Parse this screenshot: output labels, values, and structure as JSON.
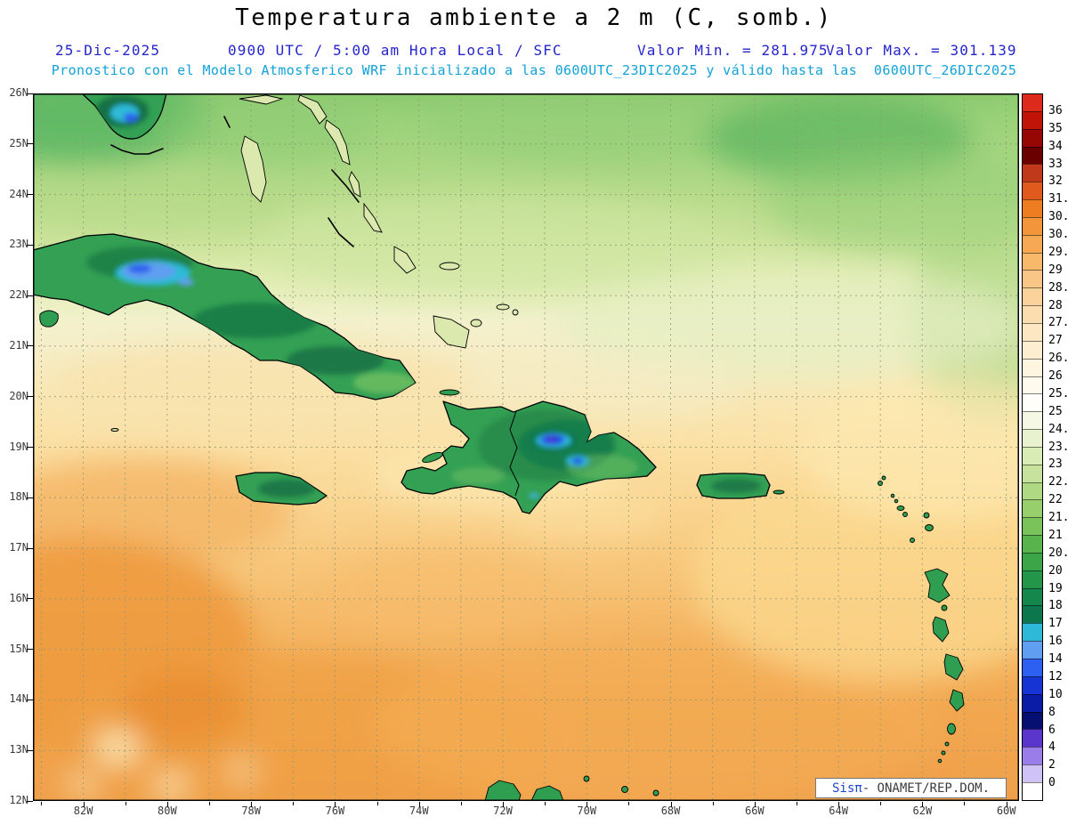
{
  "title": "Temperatura ambiente a 2 m (C, somb.)",
  "header": {
    "date": "25-Dic-2025",
    "validity": "0900 UTC / 5:00 am Hora Local / SFC",
    "min": "Valor Min. = 281.975",
    "max": "Valor Max. = 301.139",
    "model": "Pronostico con el Modelo Atmosferico WRF inicializado a las 0600UTC_23DIC2025 y válido hasta las  0600UTC_26DIC2025"
  },
  "branding": {
    "system": "Sisπ",
    "org": "- ONAMET/REP.DOM."
  },
  "axes": {
    "lat": [
      "26N",
      "25N",
      "24N",
      "23N",
      "22N",
      "21N",
      "20N",
      "19N",
      "18N",
      "17N",
      "16N",
      "15N",
      "14N",
      "13N",
      "12N"
    ],
    "lon": [
      "82W",
      "80W",
      "78W",
      "76W",
      "74W",
      "72W",
      "70W",
      "68W",
      "66W",
      "64W",
      "62W",
      "60W"
    ]
  },
  "colorbar": {
    "labels": [
      "36",
      "35",
      "34",
      "33",
      "32",
      "31.5",
      "30.7",
      "30.2",
      "29.7",
      "29",
      "28.5",
      "28",
      "27.5",
      "27",
      "26.5",
      "26",
      "25.5",
      "25",
      "24.5",
      "23.5",
      "23",
      "22.5",
      "22",
      "21.5",
      "21",
      "20.5",
      "20",
      "19",
      "18",
      "17",
      "16",
      "14",
      "12",
      "10",
      "8",
      "6",
      "4",
      "2",
      "0"
    ],
    "colors": [
      "#dd2a1c",
      "#c11408",
      "#960603",
      "#6b0000",
      "#c0391b",
      "#e05a1d",
      "#ee7d22",
      "#f3953a",
      "#f6a853",
      "#f8b96d",
      "#fac687",
      "#fbd29c",
      "#fcddb0",
      "#fde6c2",
      "#fdeed2",
      "#fef5e0",
      "#fefaee",
      "#fffef8",
      "#f6f8e6",
      "#e9f2cf",
      "#d9ecb6",
      "#c6e29c",
      "#b0d983",
      "#97cf6d",
      "#7ac35a",
      "#5ab44d",
      "#3ba548",
      "#23964a",
      "#15864c",
      "#0d764d",
      "#2fb9d8",
      "#5f9ef0",
      "#2d5ff0",
      "#1634d4",
      "#0a1ba6",
      "#051070",
      "#5a36cd",
      "#9b7de9",
      "#cfc2f6",
      "#ffffff"
    ]
  },
  "chart_data": {
    "type": "heatmap",
    "title": "Temperatura ambiente a 2 m (C, somb.)",
    "variable": "2 m ambient temperature (shaded)",
    "units": "C",
    "lon_ticks_w": [
      82,
      80,
      78,
      76,
      74,
      72,
      70,
      68,
      66,
      64,
      62,
      60
    ],
    "lat_ticks_n": [
      26,
      25,
      24,
      23,
      22,
      21,
      20,
      19,
      18,
      17,
      16,
      15,
      14,
      13,
      12
    ],
    "valor_min": 281.975,
    "valor_max": 301.139,
    "colorbar_ticks_c": [
      36,
      35,
      34,
      33,
      32,
      31.5,
      30.7,
      30.2,
      29.7,
      29,
      28.5,
      28,
      27.5,
      27,
      26.5,
      26,
      25.5,
      25,
      24.5,
      23.5,
      23,
      22.5,
      22,
      21.5,
      21,
      20.5,
      20,
      19,
      18,
      17,
      16,
      14,
      12,
      10,
      8,
      6,
      4,
      2,
      0
    ],
    "estimated_field_c": [
      {
        "region": "Caribbean Sea south of 16N",
        "value": "27.5-29"
      },
      {
        "region": "waters 17N-21N",
        "value": "26.5-28"
      },
      {
        "region": "Atlantic north of 22N",
        "value": "23-26"
      },
      {
        "region": "far north 25N-26N",
        "value": "22-24"
      },
      {
        "region": "land interiors (Cuba, Hispaniola, Jamaica, Puerto Rico)",
        "value": "18-23"
      },
      {
        "region": "western Cuba cold pocket",
        "value": "12-16"
      },
      {
        "region": "Hispaniola Cordillera Central cold core",
        "value": "4-12"
      }
    ]
  }
}
